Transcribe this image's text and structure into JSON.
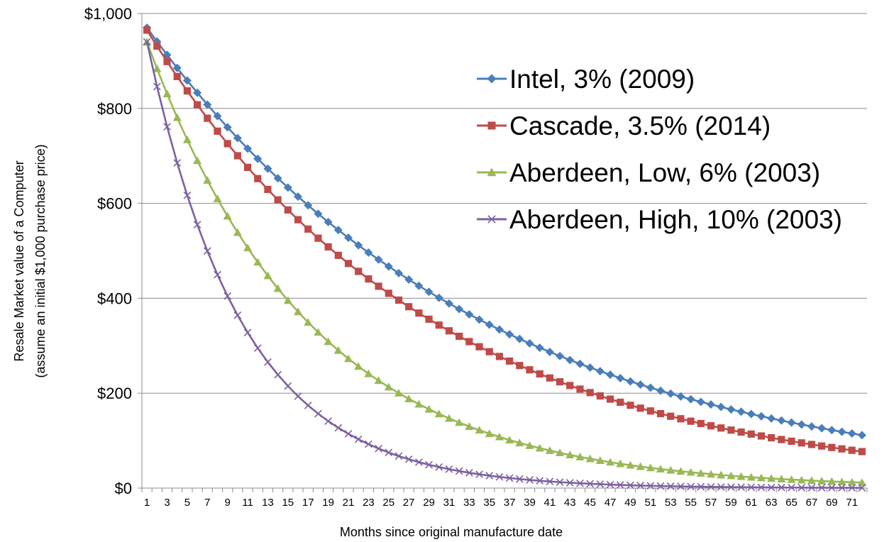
{
  "chart_data": {
    "type": "line",
    "xlabel": "Months since original manufacture date",
    "ylabel_line1": "Resale Market value of a Computer",
    "ylabel_line2": "(assume an initial $1,000 purchase price)",
    "ylim": [
      0,
      1000
    ],
    "xlim": [
      1,
      72
    ],
    "y_ticks": [
      {
        "value": 0,
        "label": "$0"
      },
      {
        "value": 200,
        "label": "$200"
      },
      {
        "value": 400,
        "label": "$400"
      },
      {
        "value": 600,
        "label": "$600"
      },
      {
        "value": 800,
        "label": "$800"
      },
      {
        "value": 1000,
        "label": "$1,000"
      }
    ],
    "x_ticks": [
      "1",
      "3",
      "5",
      "7",
      "9",
      "11",
      "13",
      "15",
      "17",
      "19",
      "21",
      "23",
      "25",
      "27",
      "29",
      "31",
      "33",
      "35",
      "37",
      "39",
      "41",
      "43",
      "45",
      "47",
      "49",
      "51",
      "53",
      "55",
      "57",
      "59",
      "61",
      "63",
      "65",
      "67",
      "69",
      "71"
    ],
    "grid": "horizontal",
    "legend_position": "top-right",
    "series": [
      {
        "name": "Intel, 3% (2009)",
        "color": "#4a7ebb",
        "marker": "diamond",
        "start_value": 970,
        "monthly_rate": 0.03
      },
      {
        "name": "Cascade, 3.5% (2014)",
        "color": "#be4b48",
        "marker": "square",
        "start_value": 965,
        "monthly_rate": 0.035
      },
      {
        "name": "Aberdeen, Low, 6% (2003)",
        "color": "#98b954",
        "marker": "triangle",
        "start_value": 940,
        "monthly_rate": 0.06
      },
      {
        "name": "Aberdeen, High, 10% (2003)",
        "color": "#7d60a0",
        "marker": "x",
        "start_value": 940,
        "monthly_rate": 0.1
      }
    ]
  }
}
